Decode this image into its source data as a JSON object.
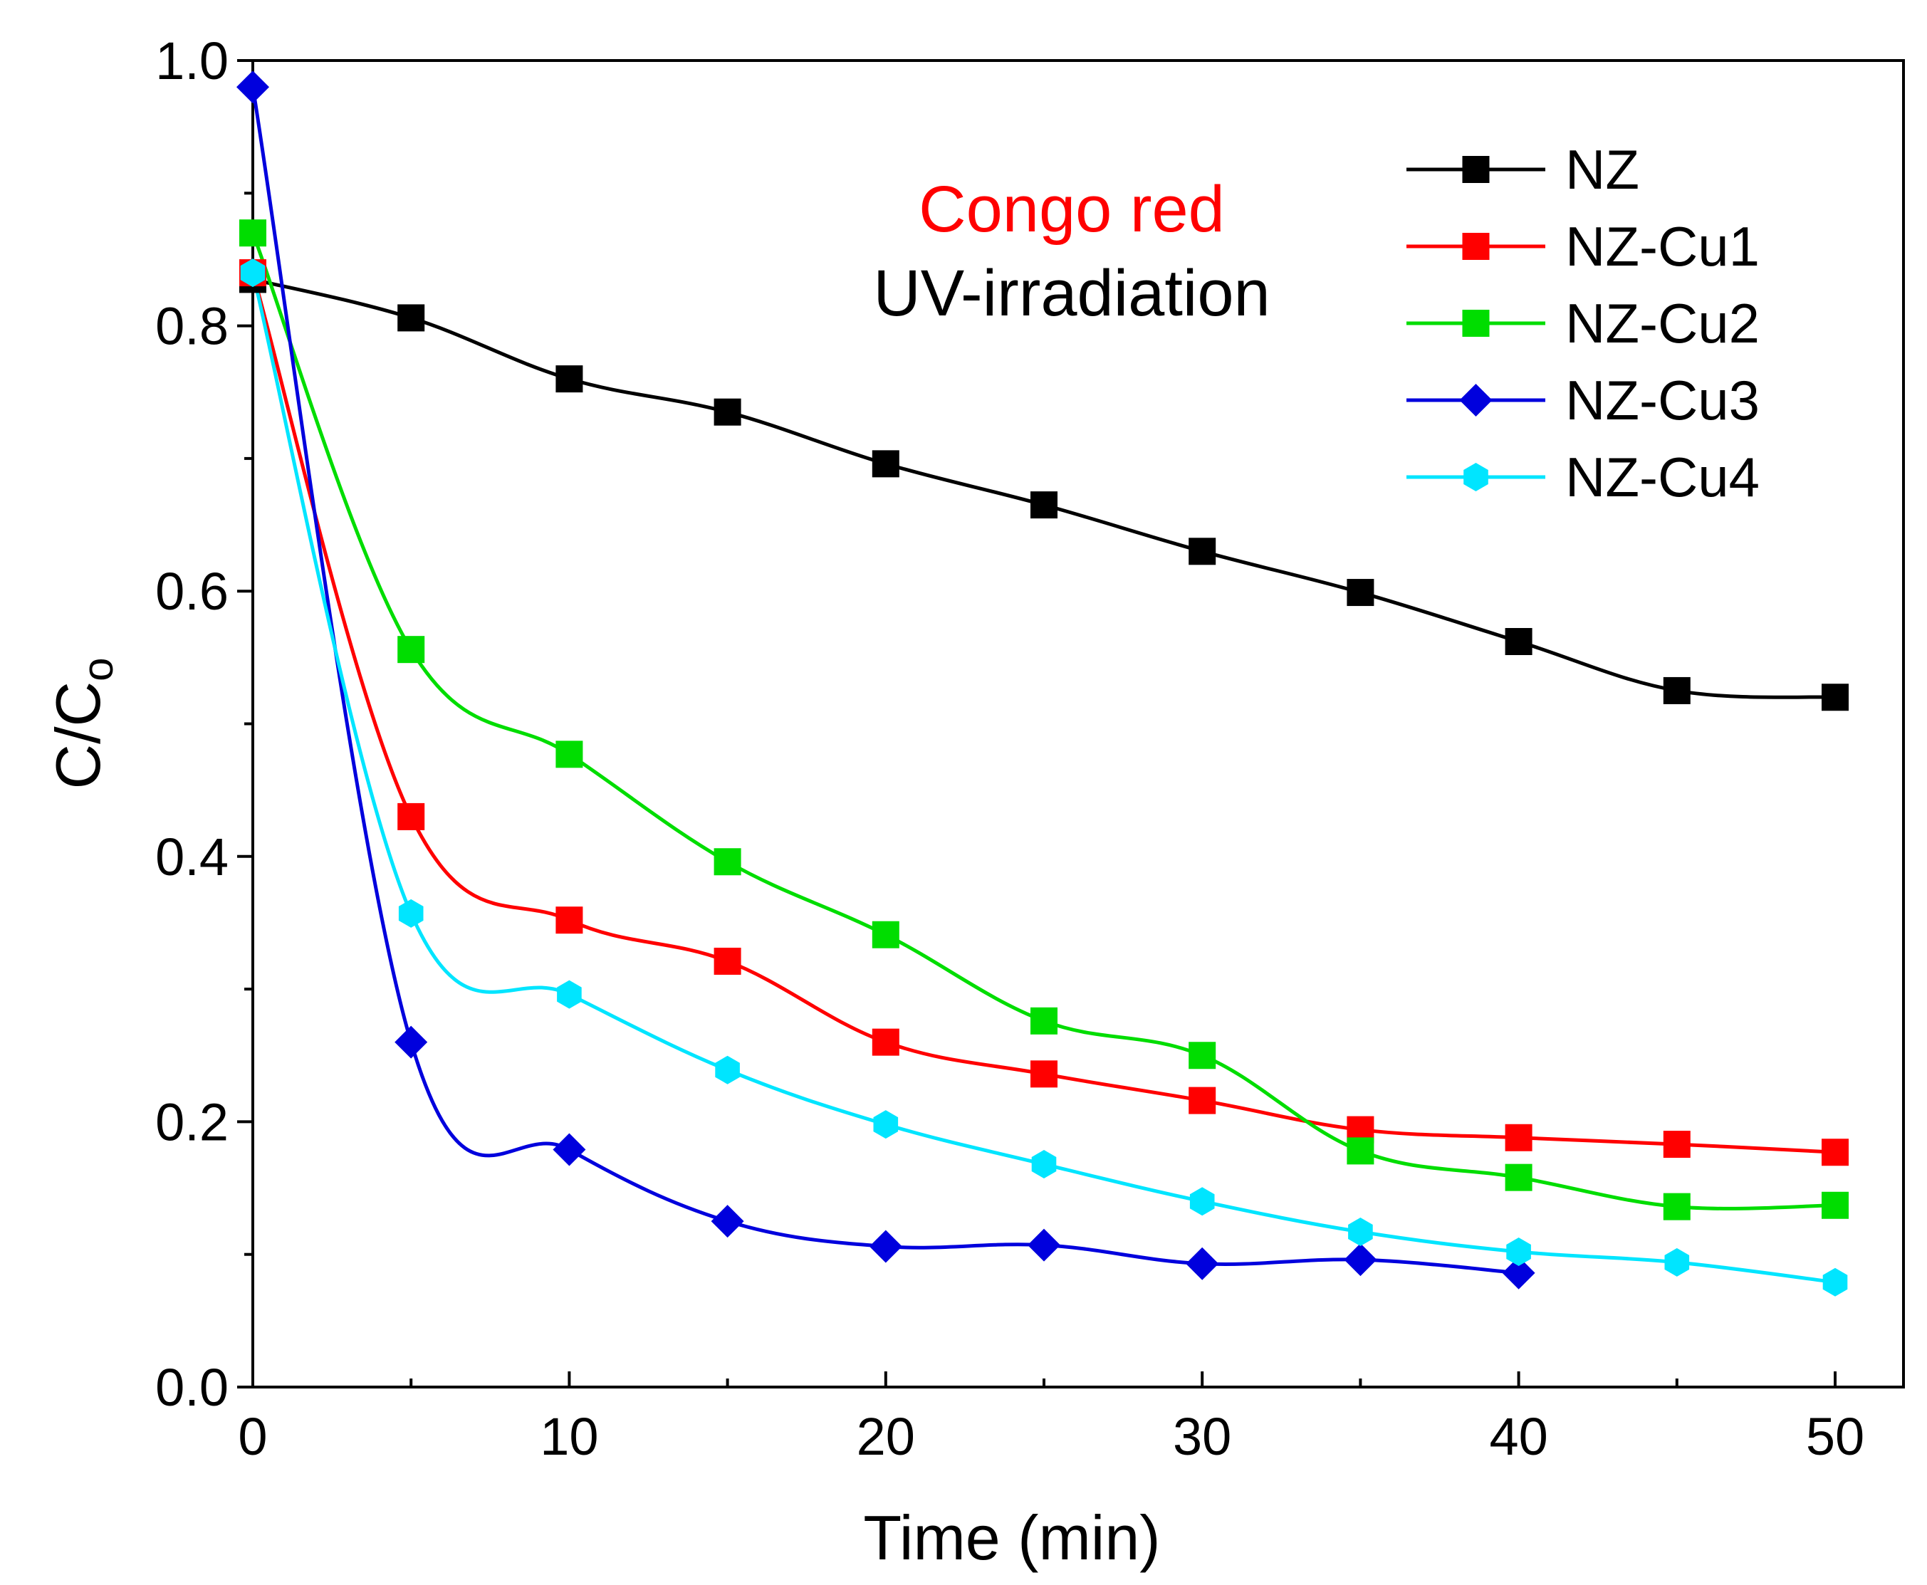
{
  "chart_data": {
    "type": "line",
    "title": "",
    "xlabel": "Time (min)",
    "ylabel_main": "C/C",
    "ylabel_sub": "o",
    "xlim": [
      0,
      52
    ],
    "ylim": [
      0,
      1.0
    ],
    "xticks": [
      0,
      10,
      20,
      30,
      40,
      50
    ],
    "xtick_labels": [
      "0",
      "10",
      "20",
      "30",
      "40",
      "50"
    ],
    "yticks": [
      0.0,
      0.2,
      0.4,
      0.6,
      0.8,
      1.0
    ],
    "ytick_labels": [
      "0.0",
      "0.2",
      "0.4",
      "0.6",
      "0.8",
      "1.0"
    ],
    "legend_position": "top-right",
    "annotations": [
      {
        "text": "Congo red",
        "color": "#ff0000"
      },
      {
        "text": "UV-irradiation",
        "color": "#000000"
      }
    ],
    "series": [
      {
        "name": "NZ",
        "color": "#000000",
        "marker": "square",
        "x": [
          0,
          5,
          10,
          15,
          20,
          25,
          30,
          35,
          40,
          45,
          50
        ],
        "y": [
          0.835,
          0.806,
          0.76,
          0.735,
          0.696,
          0.665,
          0.63,
          0.599,
          0.562,
          0.525,
          0.52
        ]
      },
      {
        "name": "NZ-Cu1",
        "color": "#ff0000",
        "marker": "square",
        "x": [
          0,
          5,
          10,
          15,
          20,
          25,
          30,
          35,
          40,
          45,
          50
        ],
        "y": [
          0.84,
          0.43,
          0.352,
          0.321,
          0.26,
          0.236,
          0.216,
          0.194,
          0.188,
          0.183,
          0.177
        ]
      },
      {
        "name": "NZ-Cu2",
        "color": "#00dd00",
        "marker": "square",
        "x": [
          0,
          5,
          10,
          15,
          20,
          25,
          30,
          35,
          40,
          45,
          50
        ],
        "y": [
          0.87,
          0.556,
          0.477,
          0.396,
          0.341,
          0.276,
          0.25,
          0.178,
          0.158,
          0.136,
          0.137
        ]
      },
      {
        "name": "NZ-Cu3",
        "color": "#0000dd",
        "marker": "diamond",
        "x": [
          0,
          5,
          10,
          15,
          20,
          25,
          30,
          35,
          40
        ],
        "y": [
          0.98,
          0.26,
          0.179,
          0.125,
          0.106,
          0.107,
          0.093,
          0.096,
          0.086
        ]
      },
      {
        "name": "NZ-Cu4",
        "color": "#00e5ff",
        "marker": "hexagon",
        "x": [
          0,
          5,
          10,
          15,
          20,
          25,
          30,
          35,
          40,
          45,
          50
        ],
        "y": [
          0.84,
          0.357,
          0.296,
          0.239,
          0.198,
          0.168,
          0.14,
          0.117,
          0.102,
          0.094,
          0.079
        ]
      }
    ]
  }
}
